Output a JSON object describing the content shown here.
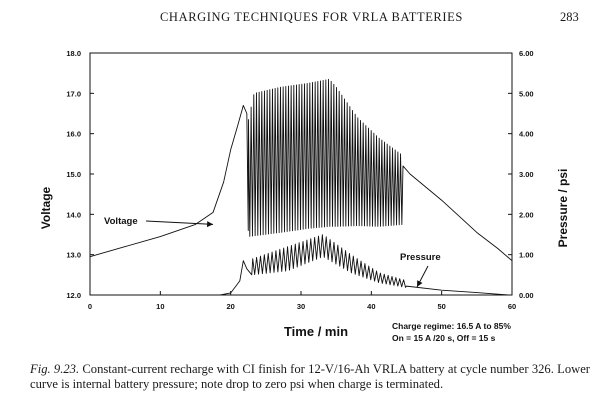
{
  "header": {
    "running_title": "CHARGING TECHNIQUES FOR VRLA BATTERIES",
    "page_number": "283"
  },
  "chart_data": {
    "type": "line",
    "x_axis": {
      "label": "Time / min",
      "range": [
        0,
        60
      ],
      "ticks": [
        0,
        10,
        20,
        30,
        40,
        50,
        60
      ],
      "tick_labels": [
        "0",
        "10",
        "20",
        "30",
        "40",
        "50",
        "60"
      ]
    },
    "y_axis_left": {
      "label": "Voltage",
      "range": [
        12.0,
        18.0
      ],
      "ticks": [
        12,
        13,
        14,
        15,
        16,
        17,
        18
      ],
      "tick_labels": [
        "12.0",
        "13.0",
        "14.0",
        "15.0",
        "16.0",
        "17.0",
        "18.0"
      ]
    },
    "y_axis_right": {
      "label": "Pressure / psi",
      "range": [
        0,
        6
      ],
      "ticks": [
        0,
        1,
        2,
        3,
        4,
        5,
        6
      ],
      "tick_labels": [
        "0.00",
        "1.00",
        "2.00",
        "3.00",
        "4.00",
        "5.00",
        "6.00"
      ]
    },
    "series": [
      {
        "name": "Voltage",
        "axis": "left",
        "base_points": [
          [
            0,
            12.95
          ],
          [
            5,
            13.2
          ],
          [
            10,
            13.45
          ],
          [
            15,
            13.75
          ],
          [
            17.5,
            14.05
          ],
          [
            19,
            14.8
          ],
          [
            20,
            15.6
          ],
          [
            21,
            16.2
          ],
          [
            21.8,
            16.7
          ],
          [
            22.3,
            16.5
          ],
          [
            22.5,
            13.6
          ]
        ],
        "pulsed_segment": {
          "x_start": 22.5,
          "x_end": 44.5,
          "cycles": 58,
          "peak_points": [
            [
              22.5,
              16.35
            ],
            [
              23.3,
              17.0
            ],
            [
              27,
              17.15
            ],
            [
              31,
              17.25
            ],
            [
              34,
              17.35
            ],
            [
              35,
              17.15
            ],
            [
              38,
              16.4
            ],
            [
              41,
              15.9
            ],
            [
              44.5,
              15.45
            ]
          ],
          "trough_points": [
            [
              22.5,
              13.45
            ],
            [
              27,
              13.55
            ],
            [
              31,
              13.65
            ],
            [
              34,
              13.7
            ],
            [
              35,
              13.7
            ],
            [
              38,
              13.72
            ],
            [
              41,
              13.7
            ],
            [
              44.5,
              13.75
            ]
          ]
        },
        "tail_points": [
          [
            44.5,
            15.2
          ],
          [
            45.5,
            15.0
          ],
          [
            50,
            14.35
          ],
          [
            55,
            13.55
          ],
          [
            58,
            13.15
          ],
          [
            60,
            12.85
          ]
        ]
      },
      {
        "name": "Pressure",
        "axis": "right",
        "base_points": [
          [
            0,
            0
          ],
          [
            18.5,
            0
          ],
          [
            20,
            0.05
          ],
          [
            21.3,
            0.35
          ],
          [
            21.8,
            0.85
          ],
          [
            22.3,
            0.65
          ],
          [
            23,
            0.5
          ]
        ],
        "pulsed_segment": {
          "x_start": 23,
          "x_end": 45,
          "cycles": 40,
          "upper_points": [
            [
              23,
              0.9
            ],
            [
              28,
              1.2
            ],
            [
              33,
              1.5
            ],
            [
              37,
              1.0
            ],
            [
              41,
              0.55
            ],
            [
              45,
              0.35
            ]
          ],
          "lower_points": [
            [
              23,
              0.5
            ],
            [
              28,
              0.6
            ],
            [
              33,
              0.95
            ],
            [
              37,
              0.55
            ],
            [
              41,
              0.3
            ],
            [
              45,
              0.18
            ]
          ]
        },
        "tail_points": [
          [
            45,
            0.22
          ],
          [
            50,
            0.12
          ],
          [
            55,
            0.06
          ],
          [
            58,
            0.02
          ],
          [
            59.5,
            0.0
          ],
          [
            60,
            0.0
          ]
        ]
      }
    ],
    "annotations": [
      {
        "text": "Voltage",
        "series": "Voltage"
      },
      {
        "text": "Pressure",
        "series": "Pressure"
      }
    ],
    "charge_regime": [
      "Charge regime:  16.5 A to 85%",
      "On = 15 A /20 s,  Off = 15 s"
    ]
  },
  "caption": {
    "fig_label": "Fig. 9.23.",
    "text": " Constant-current recharge with CI finish for 12-V/16-Ah VRLA battery at cycle number 326. Lower curve is internal battery pressure; note drop to zero psi when charge is terminated."
  }
}
